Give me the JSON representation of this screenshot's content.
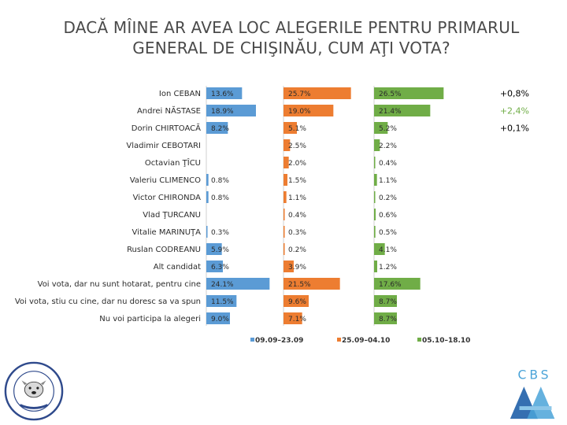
{
  "title": "DACĂ MÎINE AR AVEA LOC ALEGERILE PENTRU PRIMARUL GENERAL DE CHIŞINĂU, CUM AŢI VOTA?",
  "chart_data": {
    "type": "bar",
    "orientation": "horizontal-panels",
    "categories": [
      "Ion CEBAN",
      "Andrei NĂSTASE",
      "Dorin CHIRTOACĂ",
      "Vladimir CEBOTARI",
      "Octavian ŢÎCU",
      "Valeriu CLIMENCO",
      "Victor CHIRONDA",
      "Vlad ŢURCANU",
      "Vitalie MARINUŢA",
      "Ruslan CODREANU",
      "Alt candidat",
      "Voi vota, dar nu sunt hotarat, pentru cine",
      "Voi vota, stiu cu cine, dar nu doresc sa va spun",
      "Nu voi participa la alegeri"
    ],
    "series": [
      {
        "name": "09.09–23.09",
        "color": "#5b9bd5",
        "values": [
          13.6,
          18.9,
          8.2,
          null,
          null,
          0.8,
          0.8,
          null,
          0.3,
          5.9,
          6.3,
          24.1,
          11.5,
          9.0
        ],
        "labels": [
          "13.6%",
          "18.9%",
          "8.2%",
          "",
          "",
          "0.8%",
          "0.8%",
          "",
          "0.3%",
          "5.9%",
          "6.3%",
          "24.1%",
          "11.5%",
          "9.0%"
        ]
      },
      {
        "name": "25.09–04.10",
        "color": "#ed7d31",
        "values": [
          25.7,
          19.0,
          5.1,
          2.5,
          2.0,
          1.5,
          1.1,
          0.4,
          0.3,
          0.2,
          3.9,
          21.5,
          9.6,
          7.1
        ],
        "labels": [
          "25.7%",
          "19.0%",
          "5.1%",
          "2.5%",
          "2.0%",
          "1.5%",
          "1.1%",
          "0.4%",
          "0.3%",
          "0.2%",
          "3.9%",
          "21.5%",
          "9.6%",
          "7.1%"
        ]
      },
      {
        "name": "05.10–18.10",
        "color": "#70ad47",
        "values": [
          26.5,
          21.4,
          5.2,
          2.2,
          0.4,
          1.1,
          0.2,
          0.6,
          0.5,
          4.1,
          1.2,
          17.6,
          8.7,
          8.7
        ],
        "labels": [
          "26.5%",
          "21.4%",
          "5.2%",
          "2.2%",
          "0.4%",
          "1.1%",
          "0.2%",
          "0.6%",
          "0.5%",
          "4.1%",
          "1.2%",
          "17.6%",
          "8.7%",
          "8.7%"
        ]
      }
    ],
    "differences": [
      {
        "category": "Ion CEBAN",
        "text": "+0,8%",
        "color": "#000000"
      },
      {
        "category": "Andrei NĂSTASE",
        "text": "+2,4%",
        "color": "#70ad47"
      },
      {
        "category": "Dorin CHIRTOACĂ",
        "text": "+0,1%",
        "color": "#000000"
      }
    ],
    "xlim": [
      0,
      30
    ],
    "grid": false,
    "legend_position": "bottom"
  },
  "logos": {
    "left_text": "HE WHO THE UNEXPECTED FOR YOU WATCH DOG",
    "left_color": "#2f4a8c",
    "right_text": "CBS",
    "right_colors": [
      "#4aa3d8",
      "#1f5fa8",
      "#8cc6e8"
    ]
  }
}
